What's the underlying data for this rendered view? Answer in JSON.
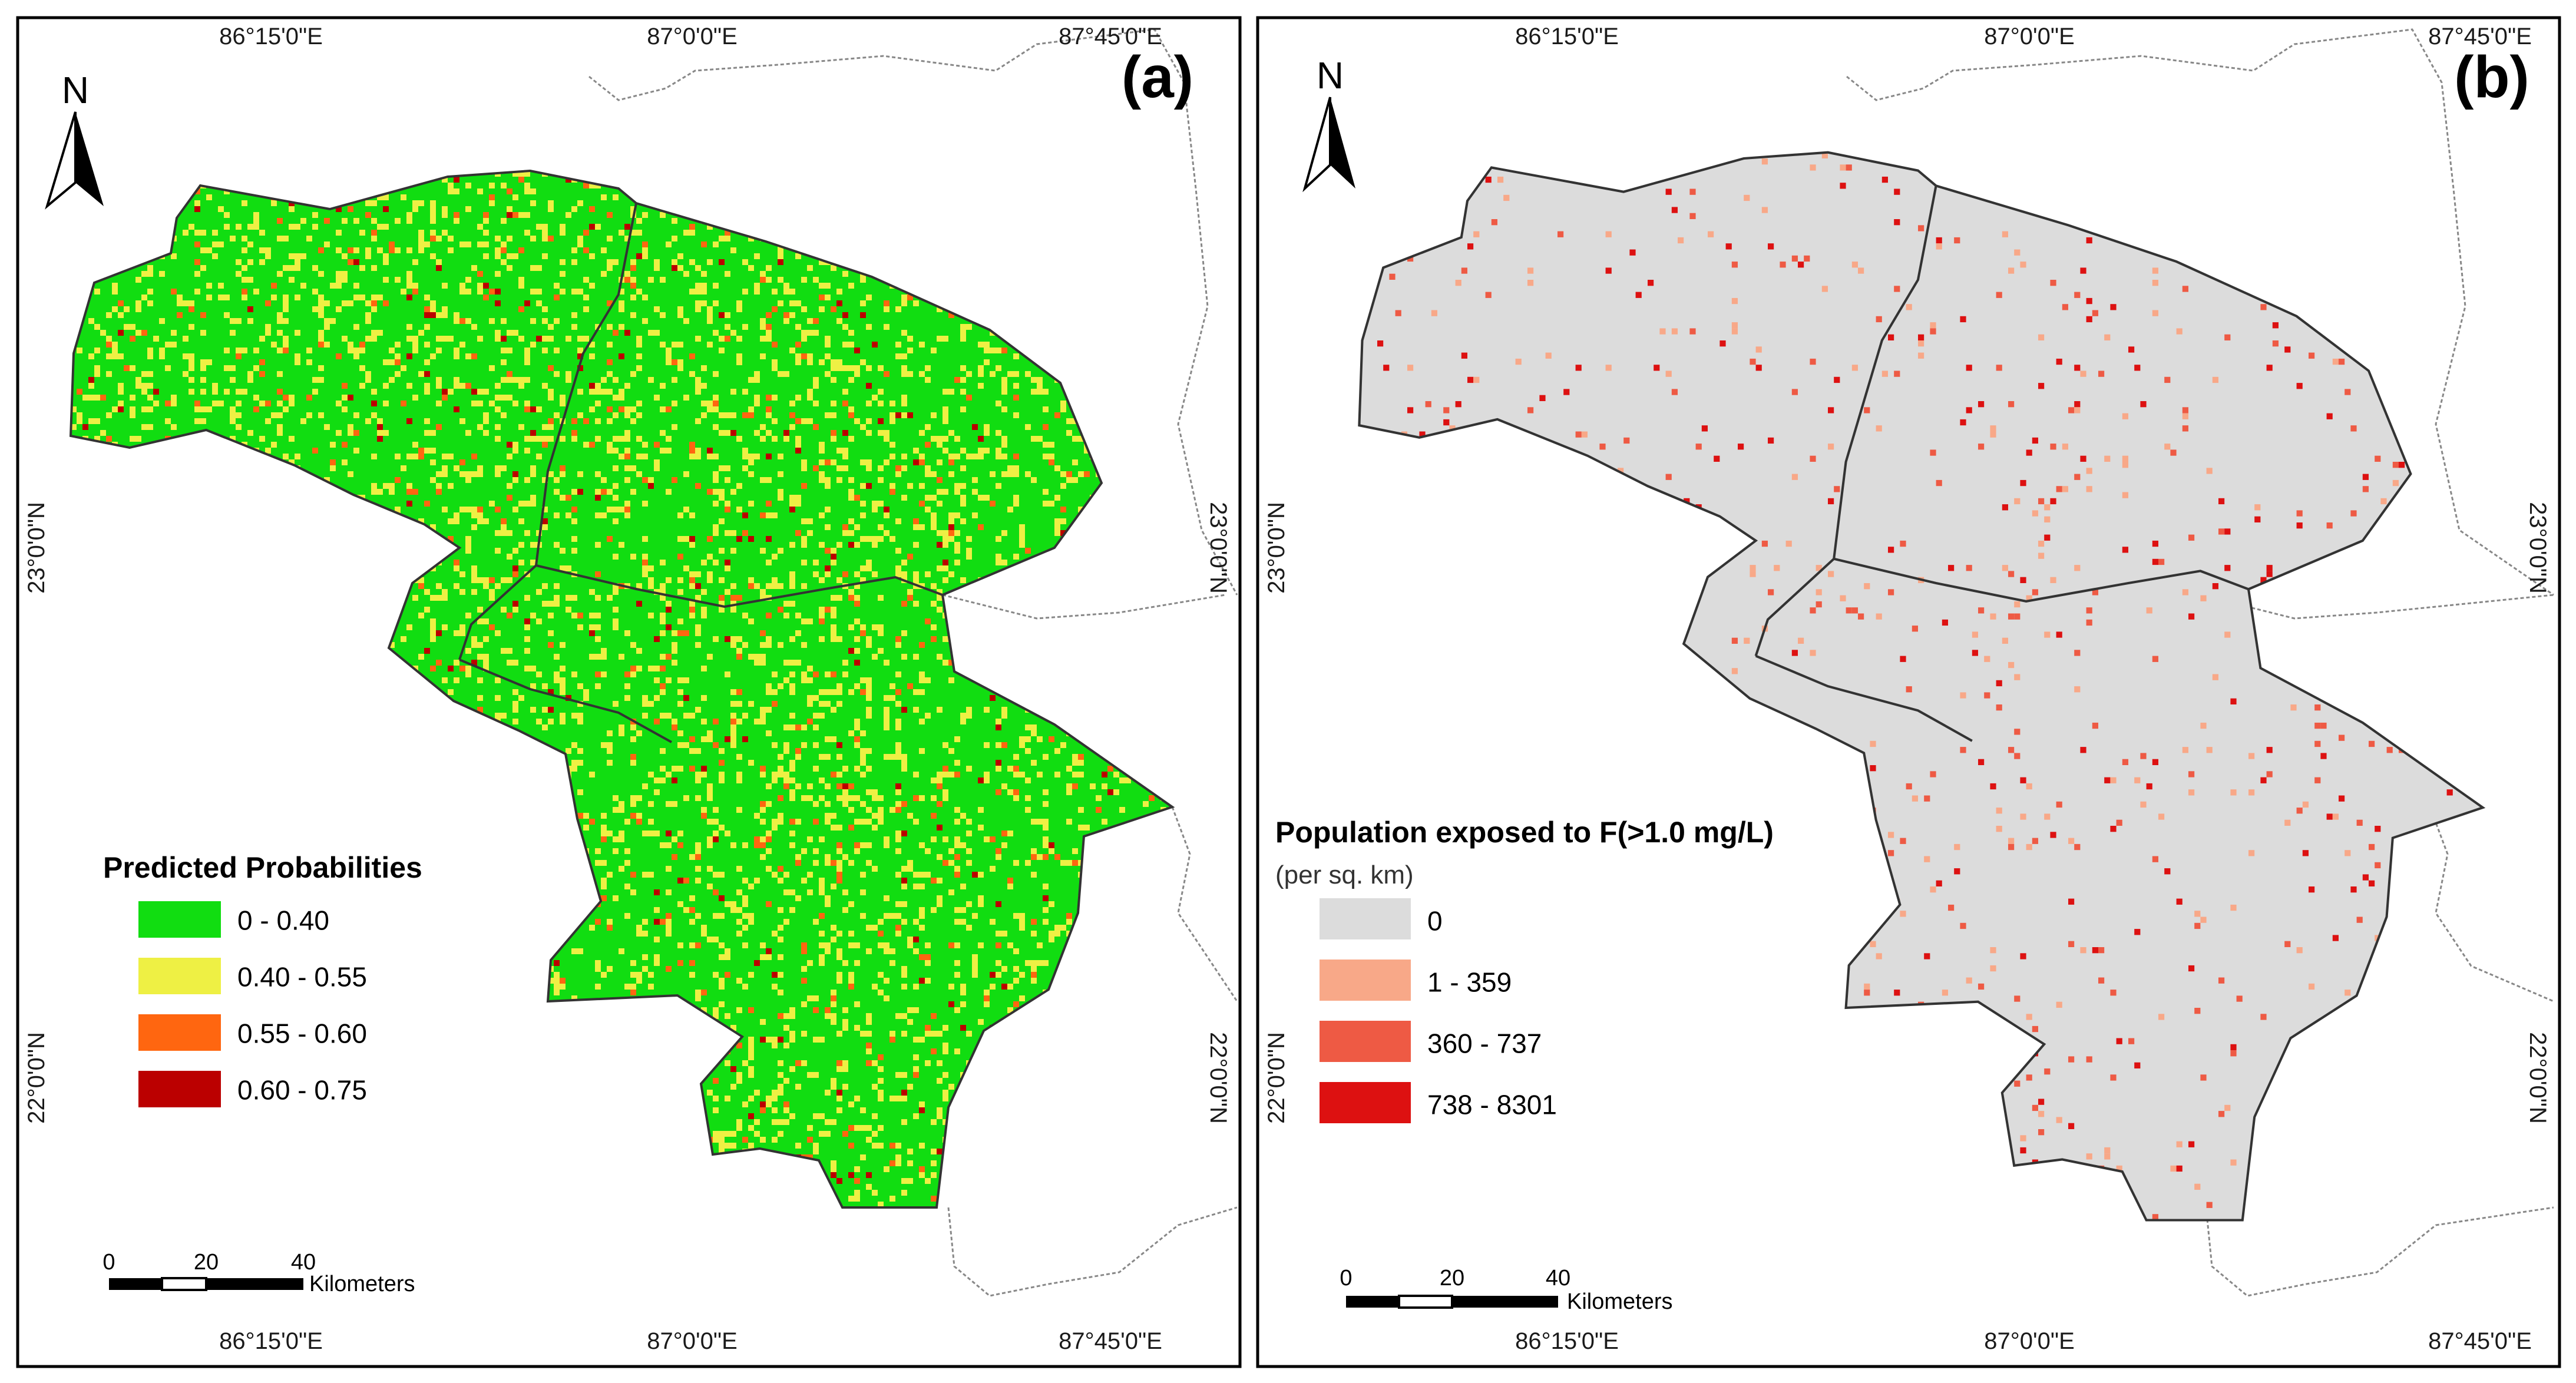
{
  "panels": [
    {
      "id": "a",
      "letter": "(a)",
      "legend": {
        "title": "Predicted Probabilities",
        "subtitle": "",
        "classes": [
          {
            "label": "0 - 0.40",
            "color": "#11dd11"
          },
          {
            "label": "0.40 - 0.55",
            "color": "#eef044"
          },
          {
            "label": "0.55 - 0.60",
            "color": "#ff6610"
          },
          {
            "label": "0.60 - 0.75",
            "color": "#bb0000"
          }
        ]
      },
      "background_class": 0,
      "class_weights": [
        0.8,
        0.165,
        0.025,
        0.01
      ]
    },
    {
      "id": "b",
      "letter": "(b)",
      "legend": {
        "title": "Population exposed to F(>1.0 mg/L)",
        "subtitle": "(per sq. km)",
        "classes": [
          {
            "label": "0",
            "color": "#dcdcdc"
          },
          {
            "label": "1 - 359",
            "color": "#f8a888"
          },
          {
            "label": "360 - 737",
            "color": "#ee5a44"
          },
          {
            "label": "738 - 8301",
            "color": "#dd1111"
          }
        ]
      },
      "background_class": 0,
      "class_weights": [
        0.97,
        0.012,
        0.01,
        0.008
      ]
    }
  ],
  "graticule": {
    "top_labels": [
      "86°15'0\"E",
      "87°0'0\"E",
      "87°45'0\"E"
    ],
    "bottom_labels": [
      "86°15'0\"E",
      "87°0'0\"E",
      "87°45'0\"E"
    ],
    "left_labels": [
      "23°0'0\"N",
      "22°0'0\"N"
    ],
    "right_labels": [
      "23°0'0\"N",
      "22°0'0\"N"
    ]
  },
  "north_arrow": {
    "label": "N"
  },
  "scale_bar": {
    "ticks": [
      "0",
      "20",
      "40"
    ],
    "unit": "Kilometers"
  },
  "colors": {
    "frame": "#000000",
    "boundary": "#333333",
    "context_border": "#888888"
  }
}
